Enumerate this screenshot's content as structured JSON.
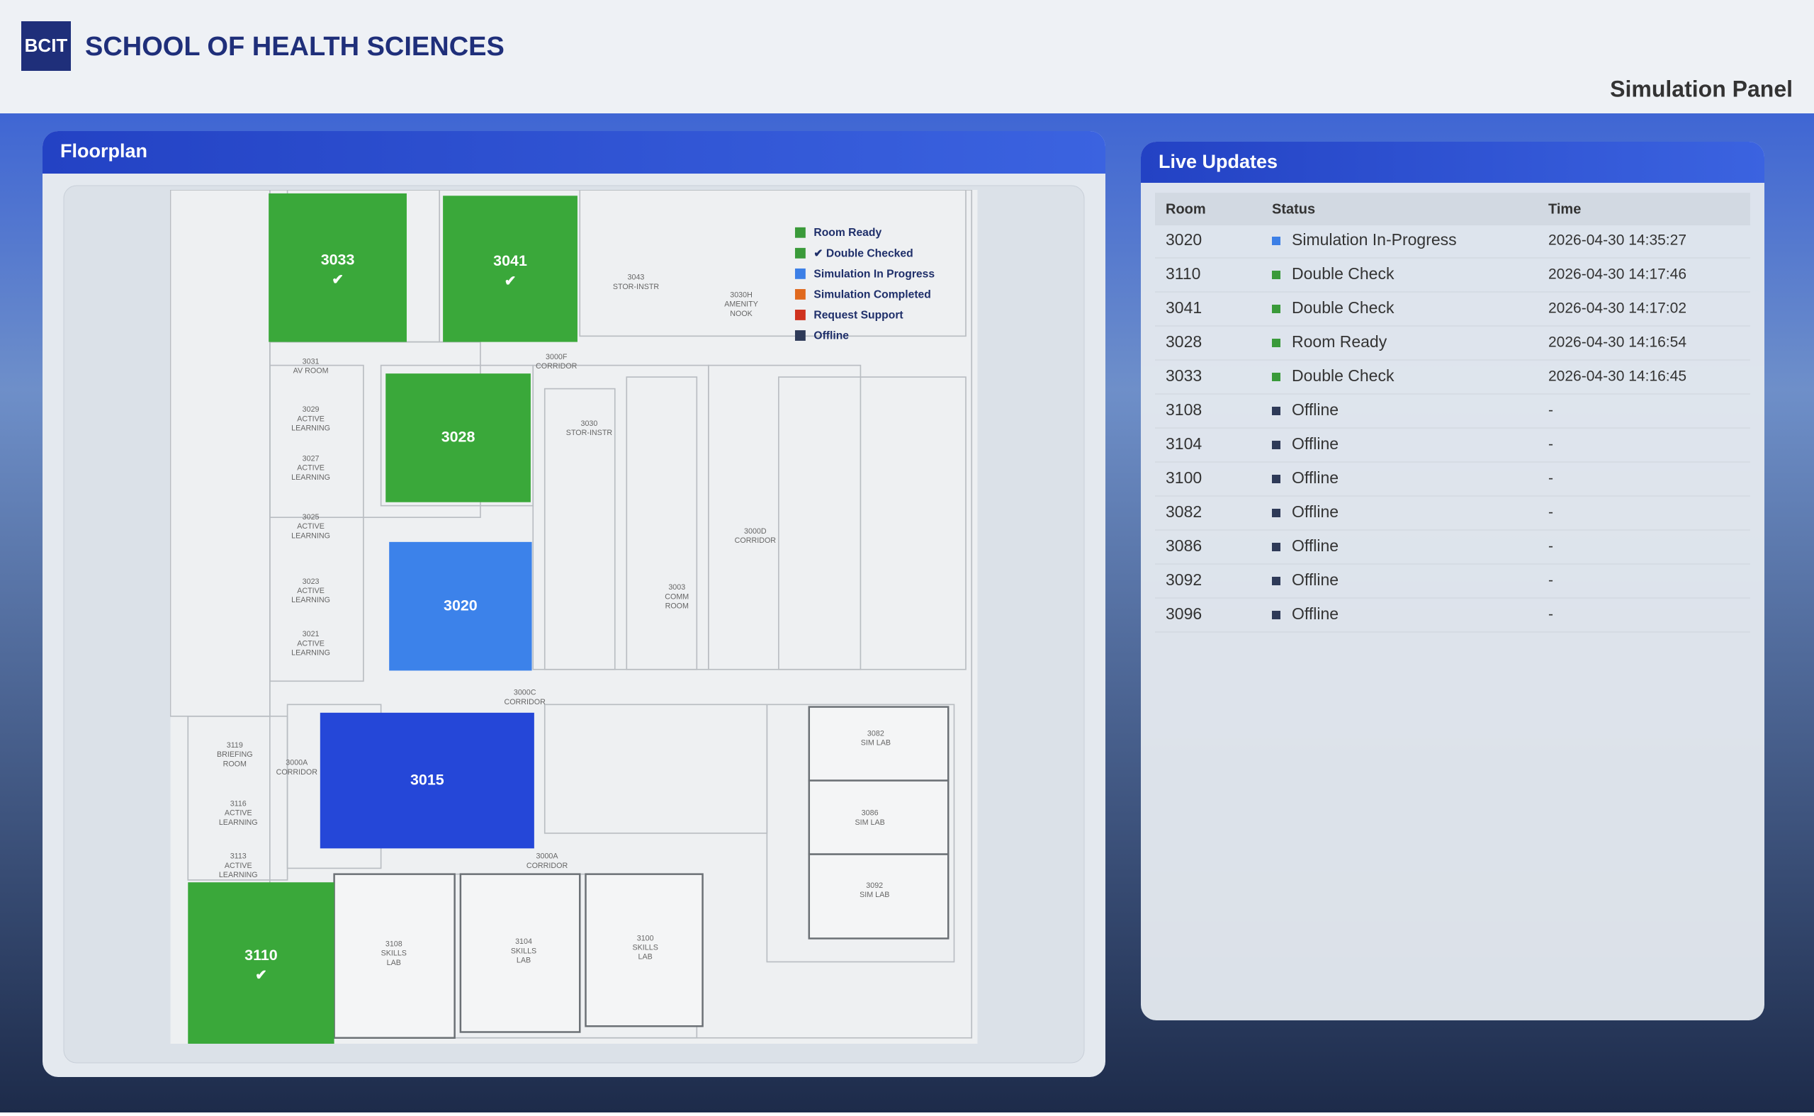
{
  "header": {
    "logo": "BCIT",
    "title": "SCHOOL OF HEALTH SCIENCES",
    "subtitle": "Simulation Panel"
  },
  "floorplan": {
    "title": "Floorplan",
    "legend": [
      {
        "label": "Room Ready",
        "color": "#3a9a3a"
      },
      {
        "label": "✔ Double Checked",
        "color": "#3a9a3a"
      },
      {
        "label": "Simulation In Progress",
        "color": "#3c7fe6"
      },
      {
        "label": "Simulation Completed",
        "color": "#e0691e"
      },
      {
        "label": "Request Support",
        "color": "#cf321e"
      },
      {
        "label": "Offline",
        "color": "#2e3a58"
      }
    ],
    "rooms": [
      {
        "number": "3033",
        "mark": "✔",
        "color": "#3aa83a"
      },
      {
        "number": "3041",
        "mark": "✔",
        "color": "#3aa83a"
      },
      {
        "number": "3028",
        "color": "#3aa83a"
      },
      {
        "number": "3020",
        "color": "#3c82ea"
      },
      {
        "number": "3015",
        "color": "#2547d8"
      },
      {
        "number": "3110",
        "mark": "✔",
        "color": "#3aa83a"
      }
    ],
    "labels": [
      {
        "lines": [
          "3082",
          "SIM LAB"
        ]
      },
      {
        "lines": [
          "3086",
          "SIM LAB"
        ]
      },
      {
        "lines": [
          "3092",
          "SIM LAB"
        ]
      },
      {
        "lines": [
          "3108",
          "SKILLS",
          "LAB"
        ]
      },
      {
        "lines": [
          "3104",
          "SKILLS",
          "LAB"
        ]
      },
      {
        "lines": [
          "3100",
          "SKILLS",
          "LAB"
        ]
      },
      {
        "lines": [
          "3000C",
          "CORRIDOR"
        ]
      },
      {
        "lines": [
          "3000A",
          "CORRIDOR"
        ]
      },
      {
        "lines": [
          "3000D",
          "CORRIDOR"
        ]
      },
      {
        "lines": [
          "3000F",
          "CORRIDOR"
        ]
      },
      {
        "lines": [
          "3031",
          "AV ROOM"
        ]
      },
      {
        "lines": [
          "3029",
          "ACTIVE",
          "LEARNING"
        ]
      },
      {
        "lines": [
          "3027",
          "ACTIVE",
          "LEARNING"
        ]
      },
      {
        "lines": [
          "3025",
          "ACTIVE",
          "LEARNING"
        ]
      },
      {
        "lines": [
          "3023",
          "ACTIVE",
          "LEARNING"
        ]
      },
      {
        "lines": [
          "3021",
          "ACTIVE",
          "LEARNING"
        ]
      },
      {
        "lines": [
          "3119",
          "BRIEFING",
          "ROOM"
        ]
      },
      {
        "lines": [
          "3116",
          "ACTIVE",
          "LEARNING"
        ]
      },
      {
        "lines": [
          "3113",
          "ACTIVE",
          "LEARNING"
        ]
      },
      {
        "lines": [
          "3043",
          "STOR-INSTR"
        ]
      },
      {
        "lines": [
          "3030H",
          "AMENITY",
          "NOOK"
        ]
      },
      {
        "lines": [
          "3030",
          "STOR-INSTR"
        ]
      },
      {
        "lines": [
          "3003",
          "COMM",
          "ROOM"
        ]
      },
      {
        "lines": [
          "3000A",
          "CORRIDOR"
        ]
      }
    ]
  },
  "live_updates": {
    "title": "Live Updates",
    "columns": [
      "Room",
      "Status",
      "Time"
    ],
    "rows": [
      {
        "room": "3020",
        "status": "Simulation In-Progress",
        "color": "#3c7fe6",
        "time": "2026-04-30 14:35:27"
      },
      {
        "room": "3110",
        "status": "Double Check",
        "color": "#3a9a3a",
        "time": "2026-04-30 14:17:46"
      },
      {
        "room": "3041",
        "status": "Double Check",
        "color": "#3a9a3a",
        "time": "2026-04-30 14:17:02"
      },
      {
        "room": "3028",
        "status": "Room Ready",
        "color": "#3a9a3a",
        "time": "2026-04-30 14:16:54"
      },
      {
        "room": "3033",
        "status": "Double Check",
        "color": "#3a9a3a",
        "time": "2026-04-30 14:16:45"
      },
      {
        "room": "3108",
        "status": "Offline",
        "color": "#2e3a58",
        "time": "-"
      },
      {
        "room": "3104",
        "status": "Offline",
        "color": "#2e3a58",
        "time": "-"
      },
      {
        "room": "3100",
        "status": "Offline",
        "color": "#2e3a58",
        "time": "-"
      },
      {
        "room": "3082",
        "status": "Offline",
        "color": "#2e3a58",
        "time": "-"
      },
      {
        "room": "3086",
        "status": "Offline",
        "color": "#2e3a58",
        "time": "-"
      },
      {
        "room": "3092",
        "status": "Offline",
        "color": "#2e3a58",
        "time": "-"
      },
      {
        "room": "3096",
        "status": "Offline",
        "color": "#2e3a58",
        "time": "-"
      }
    ]
  }
}
